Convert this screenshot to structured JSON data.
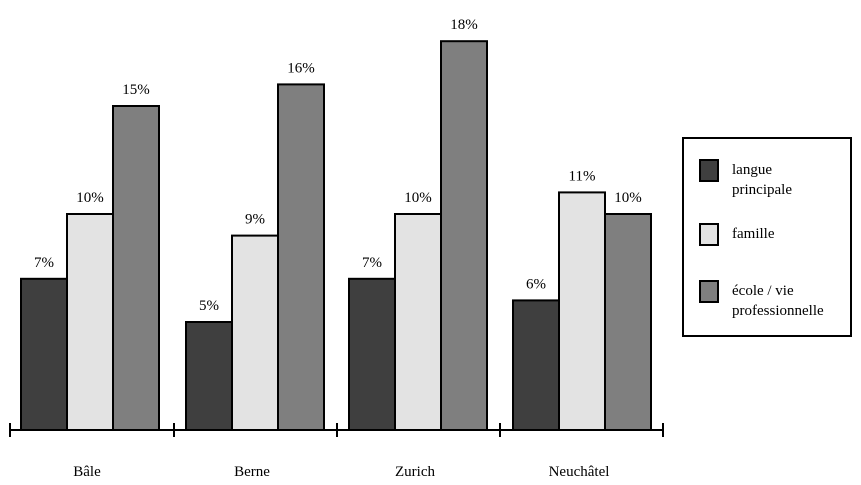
{
  "chart_data": {
    "type": "bar",
    "categories": [
      "Bâle",
      "Berne",
      "Zurich",
      "Neuchâtel"
    ],
    "series": [
      {
        "name": "langue principale",
        "values": [
          7,
          5,
          7,
          6
        ],
        "labels": [
          "7%",
          "5%",
          "7%",
          "6%"
        ],
        "color": "#3f3f3f"
      },
      {
        "name": "famille",
        "values": [
          10,
          9,
          10,
          11
        ],
        "labels": [
          "10%",
          "9%",
          "10%",
          "11%"
        ],
        "color": "#e3e3e3"
      },
      {
        "name": "école / vie professionnelle",
        "values": [
          15,
          16,
          18,
          10
        ],
        "labels": [
          "15%",
          "16%",
          "18%",
          "10%"
        ],
        "color": "#7f7f7f"
      }
    ],
    "legend": {
      "placement": "right",
      "entries": [
        [
          "langue",
          "principale"
        ],
        [
          "famille"
        ],
        [
          "école / vie",
          "professionnelle"
        ]
      ]
    },
    "ylim": [
      0,
      18
    ],
    "grid": false
  }
}
